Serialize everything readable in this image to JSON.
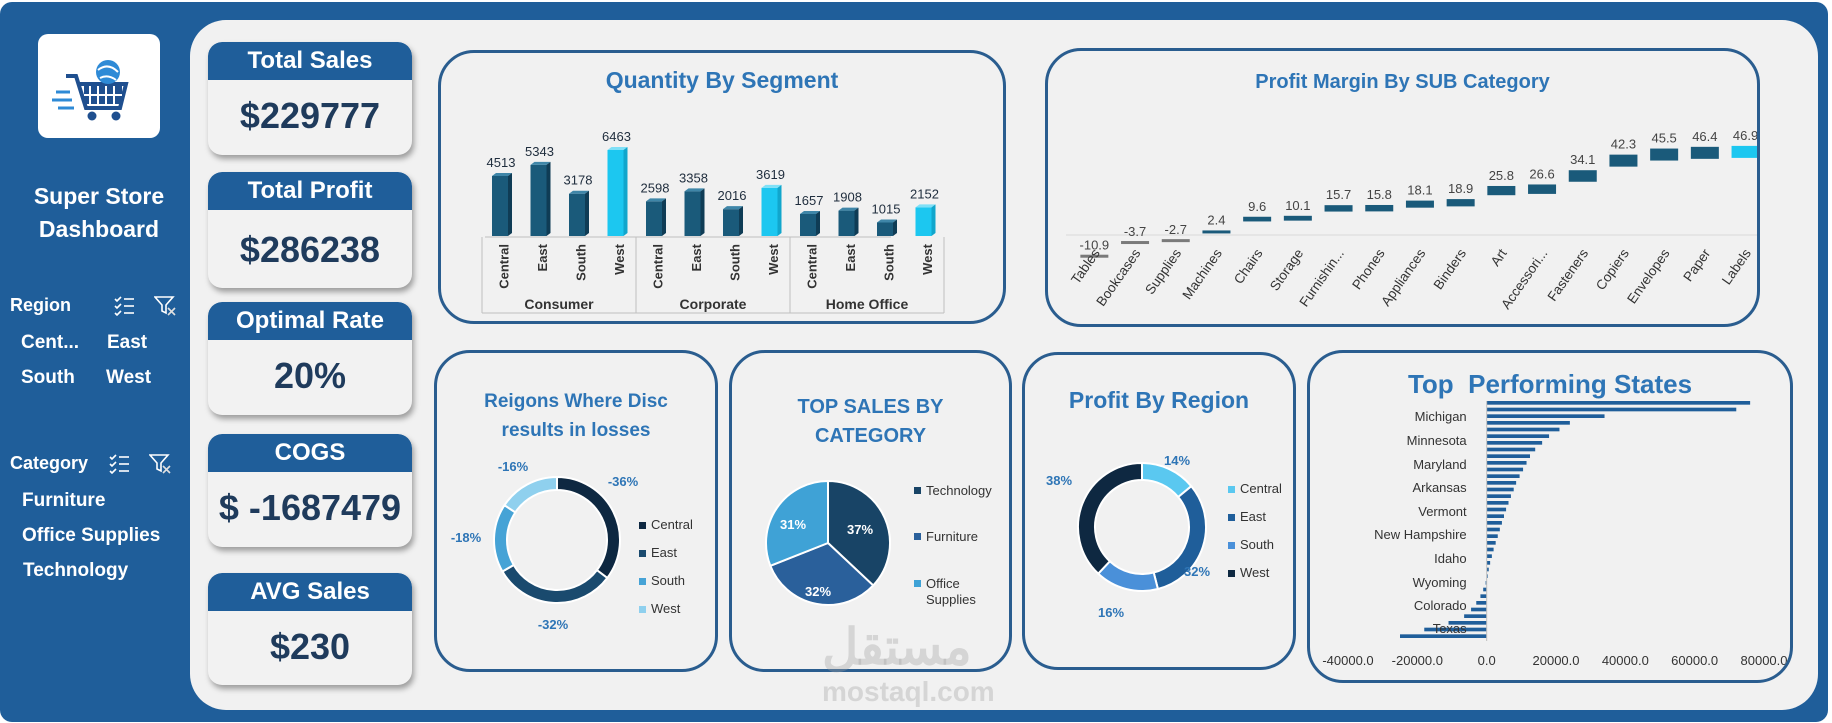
{
  "sidebar": {
    "title_line1": "Super Store",
    "title_line2": "Dashboard",
    "region": {
      "label": "Region",
      "items": [
        "Cent...",
        "East",
        "South",
        "West"
      ]
    },
    "category": {
      "label": "Category",
      "items": [
        "Furniture",
        "Office Supplies",
        "Technology"
      ]
    },
    "icons": [
      "cart-globe-logo-icon",
      "multi-select-icon",
      "clear-filter-icon"
    ]
  },
  "kpis": [
    {
      "label": "Total Sales",
      "value": "$229777"
    },
    {
      "label": "Total Profit",
      "value": "$286238"
    },
    {
      "label": "Optimal Rate",
      "value": "20%"
    },
    {
      "label": "COGS",
      "value": "$ -1687479"
    },
    {
      "label": "AVG Sales",
      "value": "$230"
    }
  ],
  "colors": {
    "dark_blue": "#1f5e9a",
    "accent_cyan": "#1cc7f0",
    "navy": "#0e2841",
    "mid_blue": "#2e75b6"
  },
  "watermark": {
    "brand": "مستقل",
    "url": "mostaql.com"
  },
  "chart_data": [
    {
      "type": "bar",
      "title": "Quantity By Segment",
      "groups": [
        "Consumer",
        "Corporate",
        "Home Office"
      ],
      "categories": [
        "Central",
        "East",
        "South",
        "West"
      ],
      "series": [
        {
          "name": "Consumer",
          "values": [
            4513,
            5343,
            3178,
            6463
          ]
        },
        {
          "name": "Corporate",
          "values": [
            2598,
            3358,
            2016,
            3619
          ]
        },
        {
          "name": "Home Office",
          "values": [
            1657,
            1908,
            1015,
            2152
          ]
        }
      ],
      "highlight_category": "West"
    },
    {
      "type": "bar",
      "title": "Profit Margin By SUB Category",
      "categories": [
        "Tables",
        "Bookcases",
        "Supplies",
        "Machines",
        "Chairs",
        "Storage",
        "Furnishin...",
        "Phones",
        "Appliances",
        "Binders",
        "Art",
        "Accessori...",
        "Fasteners",
        "Copiers",
        "Envelopes",
        "Paper",
        "Labels"
      ],
      "values": [
        -10.9,
        -3.7,
        -2.7,
        2.4,
        9.6,
        10.1,
        15.7,
        15.8,
        18.1,
        18.9,
        25.8,
        26.6,
        34.1,
        42.3,
        45.5,
        46.4,
        46.9
      ],
      "labels": [
        "-10.9",
        "-3.7",
        "-2.7",
        "2.4",
        "9.6",
        "10.1",
        "15.7",
        "15.8",
        "18.1",
        "18.9",
        "25.8",
        "26.6",
        "34.1",
        "42.3",
        "45.5",
        "46.4",
        "46.9"
      ]
    },
    {
      "type": "pie",
      "title": "Reigons Where Disc results in losses",
      "categories": [
        "Central",
        "East",
        "South",
        "West"
      ],
      "values": [
        36,
        32,
        18,
        16
      ],
      "labels": [
        "-36%",
        "-32%",
        "-18%",
        "-16%"
      ],
      "colors": [
        "#0e2841",
        "#1a4a6e",
        "#46a3d6",
        "#8fd0ee"
      ]
    },
    {
      "type": "pie",
      "title": "TOP SALES BY CATEGORY",
      "categories": [
        "Technology",
        "Furniture",
        "Office Supplies"
      ],
      "values": [
        37,
        32,
        31
      ],
      "labels": [
        "37%",
        "32%",
        "31%"
      ],
      "colors": [
        "#184466",
        "#2a609b",
        "#3fa2d6"
      ]
    },
    {
      "type": "pie",
      "title": "Profit By Region",
      "categories": [
        "Central",
        "East",
        "South",
        "West"
      ],
      "values": [
        14,
        32,
        16,
        38
      ],
      "labels": [
        "14%",
        "32%",
        "16%",
        "38%"
      ],
      "colors": [
        "#5ac8f0",
        "#1f5e9a",
        "#4a90d9",
        "#0e2841"
      ]
    },
    {
      "type": "bar",
      "title": "Top  Performing States",
      "category_labels": [
        "Michigan",
        "Minnesota",
        "Maryland",
        "Arkansas",
        "Vermont",
        "New Hampshire",
        "Idaho",
        "Wyoming",
        "Colorado",
        "Texas"
      ],
      "xlim": [
        -40000,
        80000
      ],
      "xticks": [
        "-40000.0",
        "-20000.0",
        "0.0",
        "20000.0",
        "40000.0",
        "60000.0",
        "80000.0"
      ],
      "values": [
        76000,
        72000,
        34000,
        24000,
        21000,
        18000,
        16000,
        14000,
        12500,
        11500,
        10500,
        9500,
        8500,
        7800,
        7000,
        6300,
        5600,
        5000,
        4400,
        3800,
        3200,
        2600,
        2000,
        1500,
        1000,
        600,
        300,
        -300,
        -1000,
        -1800,
        -3000,
        -4500,
        -6500,
        -11000,
        -18000,
        -25000
      ]
    }
  ]
}
